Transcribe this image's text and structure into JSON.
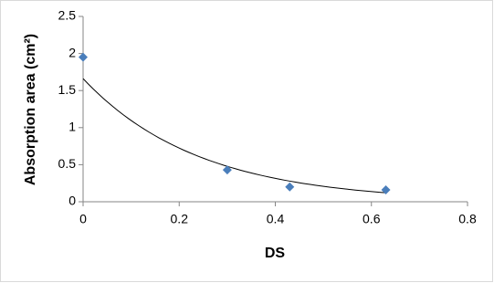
{
  "chart_data": {
    "type": "scatter",
    "x_label": "DS",
    "y_label": "Absorption area (cm²)",
    "x": [
      0,
      0.3,
      0.43,
      0.63
    ],
    "values": [
      1.95,
      0.43,
      0.2,
      0.16
    ],
    "color": "#4a7ebb",
    "trendline": "exponential",
    "trendline_color": "#000000",
    "xlim": [
      0,
      0.8
    ],
    "xticks": [
      0,
      0.2,
      0.4,
      0.6,
      0.8
    ],
    "ylim": [
      0,
      2.5
    ],
    "yticks": [
      0,
      0.5,
      1,
      1.5,
      2,
      2.5
    ],
    "grid": false
  }
}
